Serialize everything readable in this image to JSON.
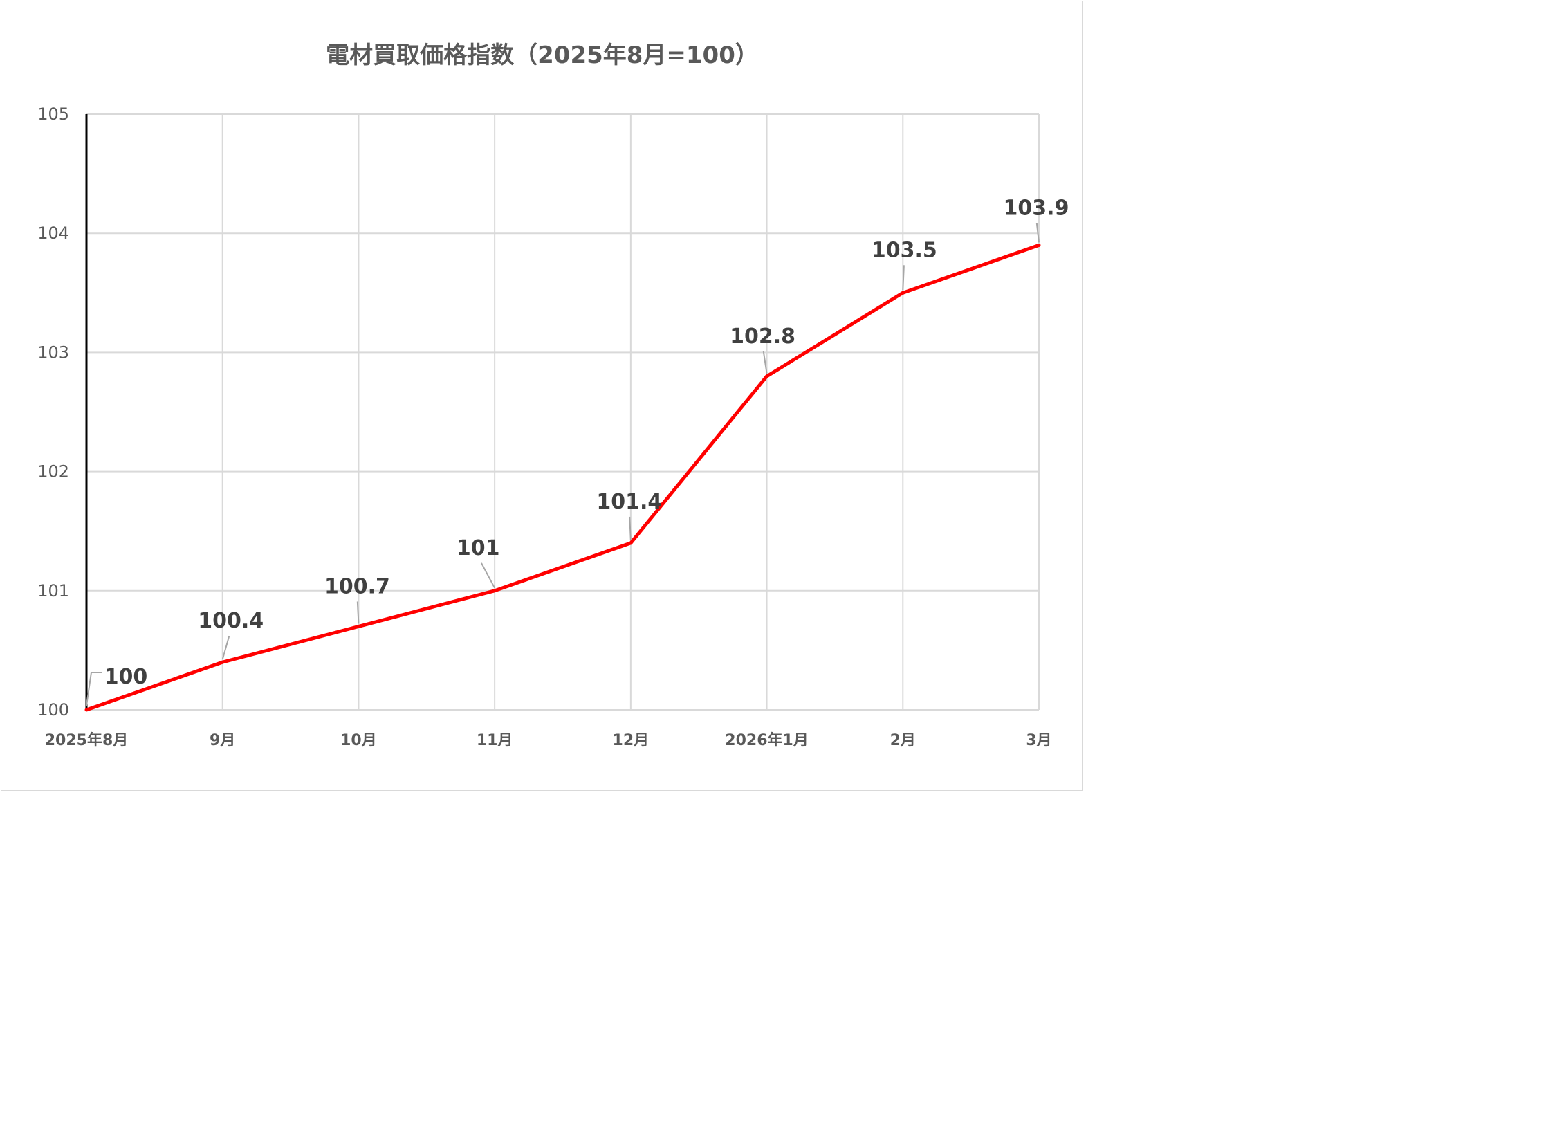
{
  "chart_data": {
    "type": "line",
    "title": "電材買取価格指数（2025年8月=100）",
    "xlabel": "",
    "ylabel": "",
    "categories": [
      "2025年8月",
      "9月",
      "10月",
      "11月",
      "12月",
      "2026年1月",
      "2月",
      "3月"
    ],
    "series": [
      {
        "values": [
          100,
          100.4,
          100.7,
          101,
          101.4,
          102.8,
          103.5,
          103.9
        ],
        "data_labels": [
          "100",
          "100.4",
          "100.7",
          "101",
          "101.4",
          "102.8",
          "103.5",
          "103.9"
        ],
        "color": "#ff0000"
      }
    ],
    "ylim": [
      100,
      105
    ],
    "yticks": [
      "100",
      "101",
      "102",
      "103",
      "104",
      "105"
    ],
    "grid": true,
    "legend": "none"
  }
}
